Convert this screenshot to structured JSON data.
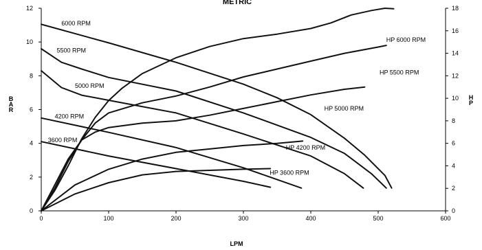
{
  "chart_data": {
    "type": "line",
    "title": "METRIC",
    "xlabel": "LPM",
    "ylabel_left": "BAR",
    "ylabel_right": "HP",
    "xlim": [
      0,
      600
    ],
    "ylim_left": [
      0,
      12
    ],
    "ylim_right": [
      0,
      18
    ],
    "x_ticks": [
      0,
      100,
      200,
      300,
      400,
      500,
      600
    ],
    "y_left_ticks": [
      0,
      2,
      4,
      6,
      8,
      10,
      12
    ],
    "y_right_ticks": [
      0,
      2,
      4,
      6,
      8,
      10,
      12,
      14,
      16,
      18
    ],
    "grid": false,
    "series": [
      {
        "name": "6000 RPM",
        "axis": "left",
        "label_at": [
          30,
          11.1
        ],
        "x": [
          0,
          100,
          200,
          300,
          350,
          400,
          450,
          480,
          510,
          520
        ],
        "y": [
          11.05,
          9.95,
          8.8,
          7.5,
          6.7,
          5.7,
          4.3,
          3.3,
          2.1,
          1.35
        ]
      },
      {
        "name": "5500 RPM",
        "axis": "left",
        "label_at": [
          23,
          9.5
        ],
        "x": [
          0,
          30,
          60,
          100,
          200,
          300,
          400,
          450,
          490,
          512
        ],
        "y": [
          9.6,
          8.8,
          8.4,
          7.9,
          7.1,
          5.8,
          4.35,
          3.4,
          2.2,
          1.35
        ]
      },
      {
        "name": "5000 RPM",
        "axis": "left",
        "label_at": [
          50,
          7.4
        ],
        "x": [
          0,
          30,
          60,
          100,
          200,
          300,
          400,
          450,
          478
        ],
        "y": [
          8.3,
          7.3,
          6.85,
          6.55,
          5.8,
          4.55,
          3.25,
          2.2,
          1.35
        ]
      },
      {
        "name": "4200 RPM",
        "axis": "left",
        "label_at": [
          20,
          5.6
        ],
        "x": [
          0,
          100,
          200,
          300,
          386
        ],
        "y": [
          5.5,
          4.65,
          3.75,
          2.55,
          1.35
        ]
      },
      {
        "name": "3600 RPM",
        "axis": "left",
        "label_at": [
          10,
          4.2
        ],
        "x": [
          0,
          100,
          200,
          300,
          340
        ],
        "y": [
          4.1,
          3.25,
          2.5,
          1.75,
          1.4
        ]
      },
      {
        "name": "HP 6000 RPM",
        "axis": "right",
        "label_at": [
          512,
          15.2
        ],
        "x": [
          0,
          20,
          40,
          60,
          80,
          100,
          120,
          150,
          200,
          250,
          300,
          350,
          400,
          430,
          460,
          490,
          510,
          523
        ],
        "y": [
          0,
          1.8,
          4.0,
          6.4,
          8.3,
          9.8,
          10.9,
          12.2,
          13.6,
          14.6,
          15.3,
          15.7,
          16.2,
          16.7,
          17.4,
          17.8,
          18.0,
          17.95
        ]
      },
      {
        "name": "HP 5500 RPM",
        "axis": "right",
        "label_at": [
          502,
          12.3
        ],
        "x": [
          0,
          20,
          40,
          60,
          80,
          100,
          150,
          200,
          250,
          300,
          350,
          400,
          450,
          500,
          512
        ],
        "y": [
          0,
          2.0,
          4.4,
          6.3,
          7.8,
          8.7,
          9.6,
          10.2,
          11.0,
          11.9,
          12.6,
          13.3,
          14.0,
          14.55,
          14.7
        ]
      },
      {
        "name": "HP 5000 RPM",
        "axis": "right",
        "label_at": [
          420,
          9.1
        ],
        "x": [
          0,
          20,
          40,
          60,
          80,
          100,
          150,
          200,
          250,
          300,
          350,
          400,
          450,
          480
        ],
        "y": [
          0,
          2.3,
          4.6,
          6.3,
          7.0,
          7.4,
          7.8,
          8.0,
          8.5,
          9.1,
          9.7,
          10.3,
          10.8,
          11.0
        ]
      },
      {
        "name": "HP 4200 RPM",
        "axis": "right",
        "label_at": [
          363,
          5.6
        ],
        "x": [
          0,
          50,
          100,
          150,
          200,
          250,
          300,
          350,
          388
        ],
        "y": [
          0,
          2.3,
          3.7,
          4.6,
          5.2,
          5.5,
          5.8,
          6.0,
          6.2
        ]
      },
      {
        "name": "HP 3600 RPM",
        "axis": "right",
        "label_at": [
          339,
          3.4
        ],
        "x": [
          0,
          50,
          100,
          150,
          200,
          250,
          300,
          340
        ],
        "y": [
          0,
          1.5,
          2.5,
          3.2,
          3.5,
          3.6,
          3.7,
          3.75
        ]
      }
    ]
  }
}
